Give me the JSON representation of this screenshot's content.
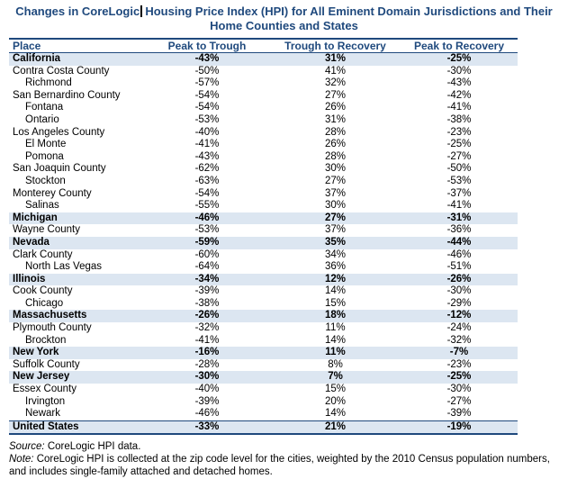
{
  "title": {
    "line1_before_cursor": "Changes in CoreLogic",
    "line1_after_cursor": "Housing Price Index (HPI) for All Eminent Domain Jurisdictions and Their",
    "line2": "Home Counties and States"
  },
  "colors": {
    "accent_navy": "#1F497D",
    "row_highlight": "#DCE6F1"
  },
  "table": {
    "columns": [
      "Place",
      "Peak to Trough",
      "Trough to Recovery",
      "Peak to Recovery"
    ],
    "rows": [
      {
        "place": "California",
        "level": "state",
        "values": [
          "-43%",
          "31%",
          "-25%"
        ]
      },
      {
        "place": "Contra Costa County",
        "level": "county",
        "values": [
          "-50%",
          "41%",
          "-30%"
        ]
      },
      {
        "place": "Richmond",
        "level": "city",
        "values": [
          "-57%",
          "32%",
          "-43%"
        ]
      },
      {
        "place": "San Bernardino County",
        "level": "county",
        "values": [
          "-54%",
          "27%",
          "-42%"
        ]
      },
      {
        "place": "Fontana",
        "level": "city",
        "values": [
          "-54%",
          "26%",
          "-41%"
        ]
      },
      {
        "place": "Ontario",
        "level": "city",
        "values": [
          "-53%",
          "31%",
          "-38%"
        ]
      },
      {
        "place": "Los Angeles County",
        "level": "county",
        "values": [
          "-40%",
          "28%",
          "-23%"
        ]
      },
      {
        "place": "El Monte",
        "level": "city",
        "values": [
          "-41%",
          "26%",
          "-25%"
        ]
      },
      {
        "place": "Pomona",
        "level": "city",
        "values": [
          "-43%",
          "28%",
          "-27%"
        ]
      },
      {
        "place": "San Joaquin County",
        "level": "county",
        "values": [
          "-62%",
          "30%",
          "-50%"
        ]
      },
      {
        "place": "Stockton",
        "level": "city",
        "values": [
          "-63%",
          "27%",
          "-53%"
        ]
      },
      {
        "place": "Monterey County",
        "level": "county",
        "values": [
          "-54%",
          "37%",
          "-37%"
        ]
      },
      {
        "place": "Salinas",
        "level": "city",
        "values": [
          "-55%",
          "30%",
          "-41%"
        ]
      },
      {
        "place": "Michigan",
        "level": "state",
        "values": [
          "-46%",
          "27%",
          "-31%"
        ]
      },
      {
        "place": "Wayne County",
        "level": "county",
        "values": [
          "-53%",
          "37%",
          "-36%"
        ]
      },
      {
        "place": "Nevada",
        "level": "state",
        "values": [
          "-59%",
          "35%",
          "-44%"
        ]
      },
      {
        "place": "Clark County",
        "level": "county",
        "values": [
          "-60%",
          "34%",
          "-46%"
        ]
      },
      {
        "place": "North Las Vegas",
        "level": "city",
        "values": [
          "-64%",
          "36%",
          "-51%"
        ]
      },
      {
        "place": "Illinois",
        "level": "state",
        "values": [
          "-34%",
          "12%",
          "-26%"
        ]
      },
      {
        "place": "Cook County",
        "level": "county",
        "values": [
          "-39%",
          "14%",
          "-30%"
        ]
      },
      {
        "place": "Chicago",
        "level": "city",
        "values": [
          "-38%",
          "15%",
          "-29%"
        ]
      },
      {
        "place": "Massachusetts",
        "level": "state",
        "values": [
          "-26%",
          "18%",
          "-12%"
        ]
      },
      {
        "place": "Plymouth County",
        "level": "county",
        "values": [
          "-32%",
          "11%",
          "-24%"
        ]
      },
      {
        "place": "Brockton",
        "level": "city",
        "values": [
          "-41%",
          "14%",
          "-32%"
        ]
      },
      {
        "place": "New York",
        "level": "state",
        "values": [
          "-16%",
          "11%",
          "-7%"
        ]
      },
      {
        "place": "Suffolk County",
        "level": "county",
        "values": [
          "-28%",
          "8%",
          "-23%"
        ]
      },
      {
        "place": "New Jersey",
        "level": "state",
        "values": [
          "-30%",
          "7%",
          "-25%"
        ]
      },
      {
        "place": "Essex County",
        "level": "county",
        "values": [
          "-40%",
          "15%",
          "-30%"
        ]
      },
      {
        "place": "Irvington",
        "level": "city",
        "values": [
          "-39%",
          "20%",
          "-27%"
        ]
      },
      {
        "place": "Newark",
        "level": "city",
        "values": [
          "-46%",
          "14%",
          "-39%"
        ]
      },
      {
        "place": "United States",
        "level": "total",
        "values": [
          "-33%",
          "21%",
          "-19%"
        ]
      }
    ]
  },
  "footer": {
    "source_label": "Source:",
    "source_text": " CoreLogic HPI data.",
    "note_label": "Note:",
    "note_text": " CoreLogic HPI is collected at the zip code level for the cities, weighted by the 2010 Census population numbers, and includes single-family attached and detached homes."
  }
}
